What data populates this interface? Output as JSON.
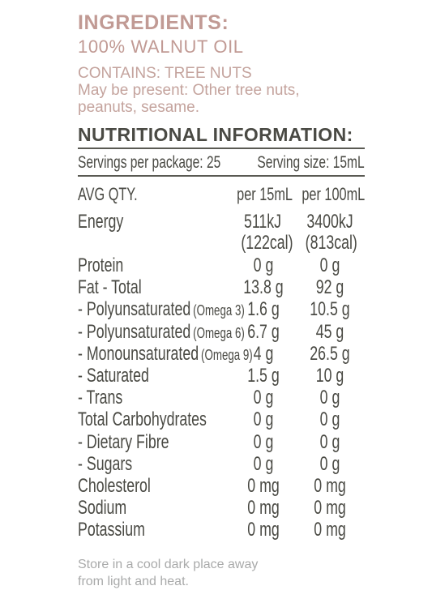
{
  "ingredients": {
    "title": "INGREDIENTS:",
    "value": "100% WALNUT OIL"
  },
  "allergens": {
    "contains": "CONTAINS: TREE NUTS",
    "may_line1": "May be present: Other tree nuts,",
    "may_line2": "peanuts, sesame."
  },
  "nutrition": {
    "title": "NUTRITIONAL INFORMATION:",
    "servings_per_package": "Servings per package: 25",
    "serving_size": "Serving size: 15mL",
    "headers": {
      "qty": "AVG QTY.",
      "per_serving": "per 15mL",
      "per_100": "per 100mL"
    },
    "energy": {
      "label": "Energy",
      "per_serving_kj": "511kJ",
      "per_serving_cal": "(122cal)",
      "per_100_kj": "3400kJ",
      "per_100_cal": "(813cal)"
    },
    "rows": [
      {
        "label": "Protein",
        "note": "",
        "per_serving": "0 g",
        "per_100": "0 g"
      },
      {
        "label": "Fat - Total",
        "note": "",
        "per_serving": "13.8 g",
        "per_100": "92 g"
      },
      {
        "label": "- Polyunsaturated",
        "note": "(Omega 3)",
        "per_serving": "1.6 g",
        "per_100": "10.5 g"
      },
      {
        "label": "- Polyunsaturated",
        "note": "(Omega 6)",
        "per_serving": "6.7 g",
        "per_100": "45 g"
      },
      {
        "label": "- Monounsaturated",
        "note": "(Omega 9)",
        "per_serving": "4 g",
        "per_100": "26.5 g"
      },
      {
        "label": "- Saturated",
        "note": "",
        "per_serving": "1.5 g",
        "per_100": "10 g"
      },
      {
        "label": "- Trans",
        "note": "",
        "per_serving": "0 g",
        "per_100": "0 g"
      },
      {
        "label": "Total Carbohydrates",
        "note": "",
        "per_serving": "0 g",
        "per_100": "0 g"
      },
      {
        "label": "- Dietary Fibre",
        "note": "",
        "per_serving": "0 g",
        "per_100": "0 g"
      },
      {
        "label": "- Sugars",
        "note": "",
        "per_serving": "0 g",
        "per_100": "0 g"
      },
      {
        "label": "Cholesterol",
        "note": "",
        "per_serving": "0 mg",
        "per_100": "0 mg"
      },
      {
        "label": "Sodium",
        "note": "",
        "per_serving": "0 mg",
        "per_100": "0 mg"
      },
      {
        "label": "Potassium",
        "note": "",
        "per_serving": "0 mg",
        "per_100": "0 mg"
      }
    ]
  },
  "storage": {
    "line1": "Store in a cool dark place away",
    "line2": "from light and heat."
  },
  "colors": {
    "accent_pink": "#c19a94",
    "text_dark": "#4a4a44",
    "footer_grey": "#a9aaaa"
  }
}
